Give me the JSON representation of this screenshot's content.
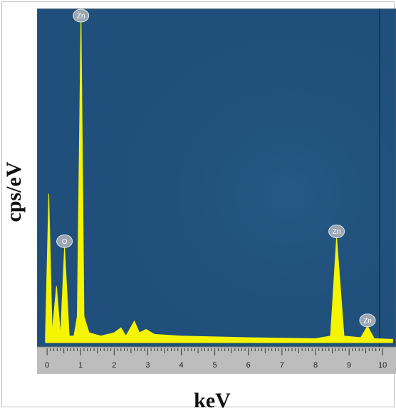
{
  "chart_data": {
    "type": "line",
    "title": "",
    "xlabel": "keV",
    "ylabel": "cps/eV",
    "xlim": [
      -0.3,
      10.4
    ],
    "ylim": [
      0,
      100
    ],
    "x_ticks": [
      0,
      1,
      2,
      3,
      4,
      5,
      6,
      7,
      8,
      9,
      10
    ],
    "x_tick_labels": [
      "0",
      "1",
      "2",
      "3",
      "4",
      "5",
      "6",
      "7",
      "8",
      "9",
      "10"
    ],
    "grid": false,
    "background_color": "#1f4f7a",
    "series_color": "#f5f500",
    "series": [
      {
        "values": [
          [
            -0.05,
            2
          ],
          [
            0.05,
            45
          ],
          [
            0.15,
            3
          ],
          [
            0.28,
            17
          ],
          [
            0.4,
            2
          ],
          [
            0.52,
            29
          ],
          [
            0.66,
            2
          ],
          [
            0.8,
            2
          ],
          [
            0.9,
            8
          ],
          [
            1.01,
            100
          ],
          [
            1.1,
            8
          ],
          [
            1.25,
            3
          ],
          [
            1.6,
            2
          ],
          [
            2.0,
            3
          ],
          [
            2.2,
            4.5
          ],
          [
            2.35,
            2
          ],
          [
            2.6,
            6.5
          ],
          [
            2.75,
            3
          ],
          [
            2.95,
            4
          ],
          [
            3.2,
            2.5
          ],
          [
            4.0,
            2
          ],
          [
            6.0,
            1.5
          ],
          [
            8.0,
            1.2
          ],
          [
            8.45,
            2
          ],
          [
            8.63,
            32
          ],
          [
            8.85,
            2
          ],
          [
            9.35,
            1.5
          ],
          [
            9.55,
            5
          ],
          [
            9.75,
            1.2
          ],
          [
            10.3,
            1
          ]
        ]
      }
    ],
    "peak_labels": [
      {
        "text": "Zn",
        "x": 1.01,
        "y": 100
      },
      {
        "text": "O",
        "x": 0.52,
        "y": 29
      },
      {
        "text": "Zn",
        "x": 8.63,
        "y": 32
      },
      {
        "text": "Zn",
        "x": 9.55,
        "y": 5
      }
    ]
  }
}
